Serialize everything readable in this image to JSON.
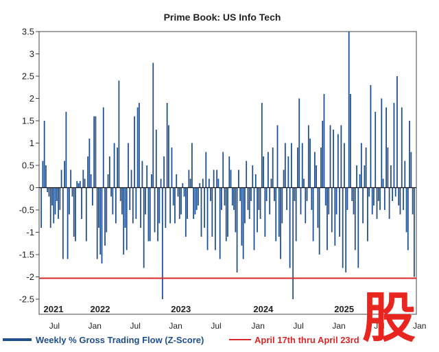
{
  "chart_data": {
    "type": "bar",
    "title": "Prime Book: US Info Tech",
    "xlabel": "",
    "ylabel": "",
    "ylim": [
      -2.5,
      3.5
    ],
    "yticks": [
      "3.5",
      "3",
      "2.5",
      "2",
      "1.5",
      "1",
      "0.5",
      "0",
      "-0.5",
      "-1",
      "-1.5",
      "-2",
      "-2.5"
    ],
    "year_labels": [
      {
        "label": "2021",
        "week": 2
      },
      {
        "label": "2022",
        "week": 32
      },
      {
        "label": "2023",
        "week": 84
      },
      {
        "label": "2024",
        "week": 137
      },
      {
        "label": "2025",
        "week": 189
      }
    ],
    "month_labels": [
      {
        "label": "Jul",
        "week": 9
      },
      {
        "label": "Jan",
        "week": 35
      },
      {
        "label": "Jul",
        "week": 61
      },
      {
        "label": "Jan",
        "week": 87
      },
      {
        "label": "Jul",
        "week": 113
      },
      {
        "label": "Jan",
        "week": 140
      },
      {
        "label": "Jul",
        "week": 166
      },
      {
        "label": "Jan",
        "week": 192
      },
      {
        "label": "Jul",
        "week": 218
      },
      {
        "label": "Jan",
        "week": 244
      }
    ],
    "threshold": {
      "name": "April 17th thru April 23rd",
      "value": -2.03,
      "color": "#d62828"
    },
    "series": [
      {
        "name": "Weekly % Gross Trading Flow (Z-Score)",
        "color": "#1f4e8c",
        "values": [
          -0.9,
          0.6,
          1.5,
          0.5,
          -0.1,
          -0.2,
          -0.9,
          -0.4,
          -0.8,
          -0.6,
          -0.3,
          -0.7,
          -0.5,
          0.4,
          -1.6,
          0.6,
          1.7,
          -1.6,
          -0.6,
          0.4,
          -0.2,
          -1.1,
          -1.2,
          0.15,
          0.1,
          0.15,
          -0.7,
          0.4,
          0.2,
          -1.2,
          0.7,
          1.1,
          0.3,
          -0.4,
          1.6,
          1.6,
          -1.6,
          -0.9,
          -1.5,
          -1.7,
          1.8,
          -1.3,
          -1.0,
          0.3,
          0.7,
          -0.2,
          -0.6,
          1.0,
          -0.8,
          0.9,
          2.4,
          -0.3,
          -0.6,
          -1.5,
          -0.9,
          -1.4,
          1.0,
          -0.5,
          0.4,
          -0.8,
          1.6,
          -0.7,
          1.8,
          1.9,
          -0.9,
          0.6,
          -1.8,
          -0.6,
          0.5,
          -1.2,
          -1.2,
          0.3,
          2.8,
          -1.0,
          1.3,
          -1.2,
          -0.8,
          0.2,
          -2.5,
          0.7,
          -0.9,
          1.9,
          1.4,
          -0.8,
          0.9,
          -0.4,
          -0.8,
          0.3,
          -0.2,
          -0.7,
          -0.6,
          0.1,
          -0.2,
          -1.1,
          -0.7,
          0.4,
          0.2,
          1.0,
          -0.7,
          -0.6,
          -0.5,
          -0.4,
          0.1,
          -1.1,
          0.2,
          -0.9,
          0.8,
          -1.4,
          0.2,
          -0.3,
          -1.1,
          0.4,
          -1.4,
          0.4,
          0.2,
          -1.6,
          -0.5,
          0.8,
          -0.4,
          -1.2,
          -1.1,
          0.7,
          0.4,
          -0.4,
          -0.5,
          -1.0,
          -1.9,
          0.4,
          -0.3,
          -1.3,
          -1.6,
          -0.8,
          0.6,
          -0.5,
          -0.7,
          -0.3,
          0.5,
          -1.4,
          0.3,
          -1.0,
          -0.5,
          -0.7,
          1.9,
          0.7,
          -1.1,
          -0.3,
          0.8,
          -0.6,
          0.2,
          0.9,
          -0.3,
          -1.2,
          1.4,
          -1.1,
          -1.6,
          -0.8,
          0.4,
          1.0,
          -0.5,
          0.7,
          -1.8,
          1.0,
          -2.5,
          -0.3,
          -1.2,
          0.9,
          2.0,
          -0.6,
          1.0,
          0.2,
          -0.8,
          -0.3,
          1.4,
          1.1,
          -0.5,
          -1.2,
          0.8,
          0.5,
          -0.9,
          -1.5,
          0.9,
          1.5,
          2.1,
          -0.4,
          -1.4,
          -0.6,
          1.4,
          -1.0,
          1.3,
          -1.3,
          -0.6,
          1.2,
          -1.1,
          1.4,
          -1.8,
          1.0,
          -1.9,
          -0.5,
          3.5,
          2.1,
          -0.3,
          -0.6,
          -1.4,
          0.5,
          -1.8,
          0.3,
          1.0,
          -0.8,
          0.5,
          0.9,
          -1.2,
          -0.2,
          2.3,
          -0.6,
          -0.4,
          1.7,
          -0.7,
          -0.3,
          -0.5,
          2.0,
          0.2,
          -0.5,
          1.8,
          0.9,
          -0.7,
          0.5,
          -0.3,
          1.9,
          -0.2,
          2.5,
          -0.4,
          -0.6,
          1.8,
          -0.5,
          0.6,
          -1.0,
          -1.4,
          1.5,
          0.8,
          -0.6,
          -2.0
        ]
      }
    ]
  },
  "legend": {
    "flow_label": "Weekly % Gross Trading Flow (Z-Score)",
    "threshold_label": "April 17th thru April 23rd"
  },
  "watermark": {
    "text": "股",
    "color": "#e8261f"
  }
}
